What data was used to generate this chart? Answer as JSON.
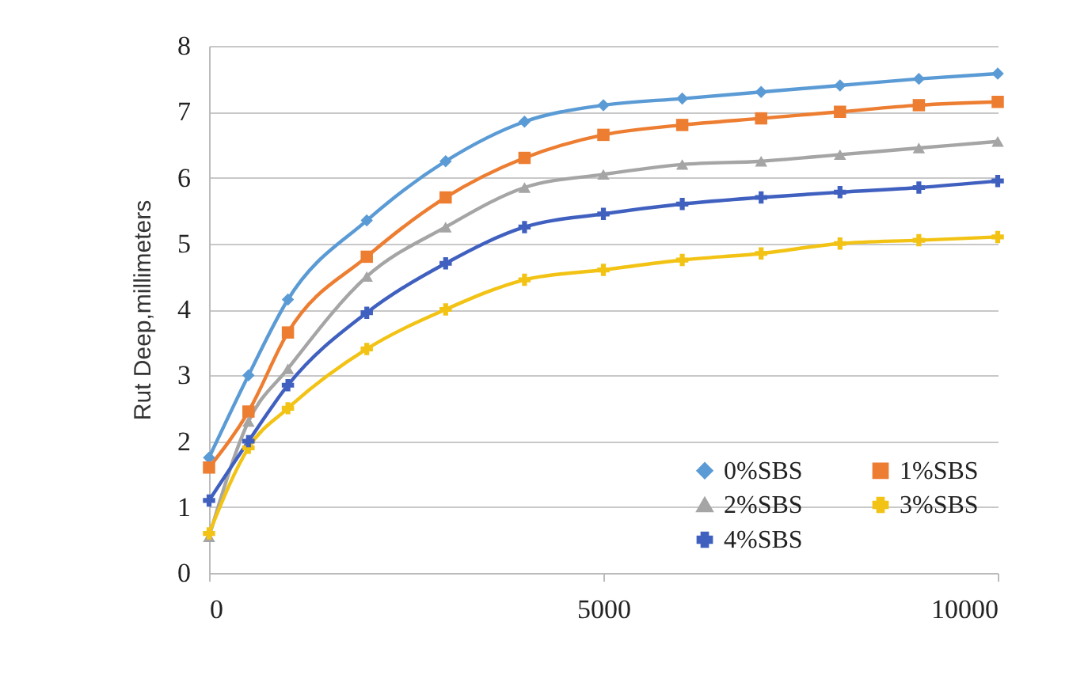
{
  "chart_data": {
    "type": "line",
    "ylabel": "Rut Deep,millimeters",
    "x": [
      0,
      500,
      1000,
      2000,
      3000,
      4000,
      5000,
      6000,
      7000,
      8000,
      9000,
      10000
    ],
    "series": [
      {
        "name": "0%SBS",
        "color": "#5b9bd5",
        "marker": "diamond",
        "values": [
          1.75,
          3.0,
          4.15,
          5.35,
          6.25,
          6.85,
          7.1,
          7.2,
          7.3,
          7.4,
          7.5,
          7.58
        ]
      },
      {
        "name": "1%SBS",
        "color": "#ed7d31",
        "marker": "square",
        "values": [
          1.6,
          2.45,
          3.65,
          4.8,
          5.7,
          6.3,
          6.65,
          6.8,
          6.9,
          7.0,
          7.1,
          7.15
        ]
      },
      {
        "name": "2%SBS",
        "color": "#a5a5a5",
        "marker": "triangle",
        "values": [
          0.55,
          2.3,
          3.1,
          4.5,
          5.25,
          5.85,
          6.05,
          6.2,
          6.25,
          6.35,
          6.45,
          6.55
        ]
      },
      {
        "name": "3%SBS",
        "color": "#f2c314",
        "marker": "cross",
        "values": [
          0.6,
          1.9,
          2.5,
          3.4,
          4.0,
          4.45,
          4.6,
          4.75,
          4.85,
          5.0,
          5.05,
          5.1
        ]
      },
      {
        "name": "4%SBS",
        "color": "#4060c0",
        "marker": "cross",
        "values": [
          1.1,
          2.0,
          2.85,
          3.95,
          4.7,
          5.25,
          5.45,
          5.6,
          5.7,
          5.78,
          5.85,
          5.95
        ]
      }
    ],
    "xlim": [
      0,
      10000
    ],
    "xticks": [
      0,
      5000,
      10000
    ],
    "ylim": [
      0,
      8
    ],
    "yticks": [
      0,
      1,
      2,
      3,
      4,
      5,
      6,
      7,
      8
    ],
    "grid": "y",
    "legend": "bottom right",
    "line_style": "solid"
  }
}
